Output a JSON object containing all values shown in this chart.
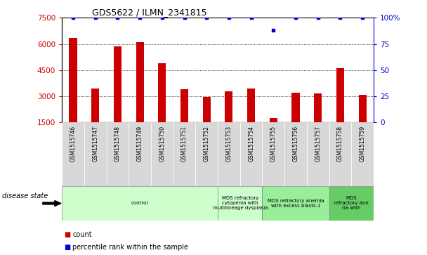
{
  "title": "GDS5622 / ILMN_2341815",
  "samples": [
    "GSM1515746",
    "GSM1515747",
    "GSM1515748",
    "GSM1515749",
    "GSM1515750",
    "GSM1515751",
    "GSM1515752",
    "GSM1515753",
    "GSM1515754",
    "GSM1515755",
    "GSM1515756",
    "GSM1515757",
    "GSM1515758",
    "GSM1515759"
  ],
  "counts": [
    6350,
    3450,
    5850,
    6100,
    4900,
    3400,
    2950,
    3300,
    3450,
    1750,
    3200,
    3150,
    4600,
    3100
  ],
  "percentile_ranks": [
    100,
    100,
    100,
    100,
    100,
    100,
    100,
    100,
    100,
    88,
    100,
    100,
    100,
    100
  ],
  "ylim_left": [
    1500,
    7500
  ],
  "ylim_right": [
    0,
    100
  ],
  "yticks_left": [
    1500,
    3000,
    4500,
    6000,
    7500
  ],
  "yticks_right": [
    0,
    25,
    50,
    75,
    100
  ],
  "bar_color": "#cc0000",
  "dot_color": "#0000cc",
  "background_color": "#ffffff",
  "disease_groups": [
    {
      "label": "control",
      "start": 0,
      "end": 7,
      "color": "#ccffcc"
    },
    {
      "label": "MDS refractory\ncytopenia with\nmultilineage dysplasia",
      "start": 7,
      "end": 9,
      "color": "#ccffcc"
    },
    {
      "label": "MDS refractory anemia\nwith excess blasts-1",
      "start": 9,
      "end": 12,
      "color": "#99ee99"
    },
    {
      "label": "MDS\nrefractory ane\nria with",
      "start": 12,
      "end": 14,
      "color": "#66cc66"
    }
  ],
  "legend_items": [
    {
      "label": "count",
      "color": "#cc0000"
    },
    {
      "label": "percentile rank within the sample",
      "color": "#0000cc"
    }
  ]
}
